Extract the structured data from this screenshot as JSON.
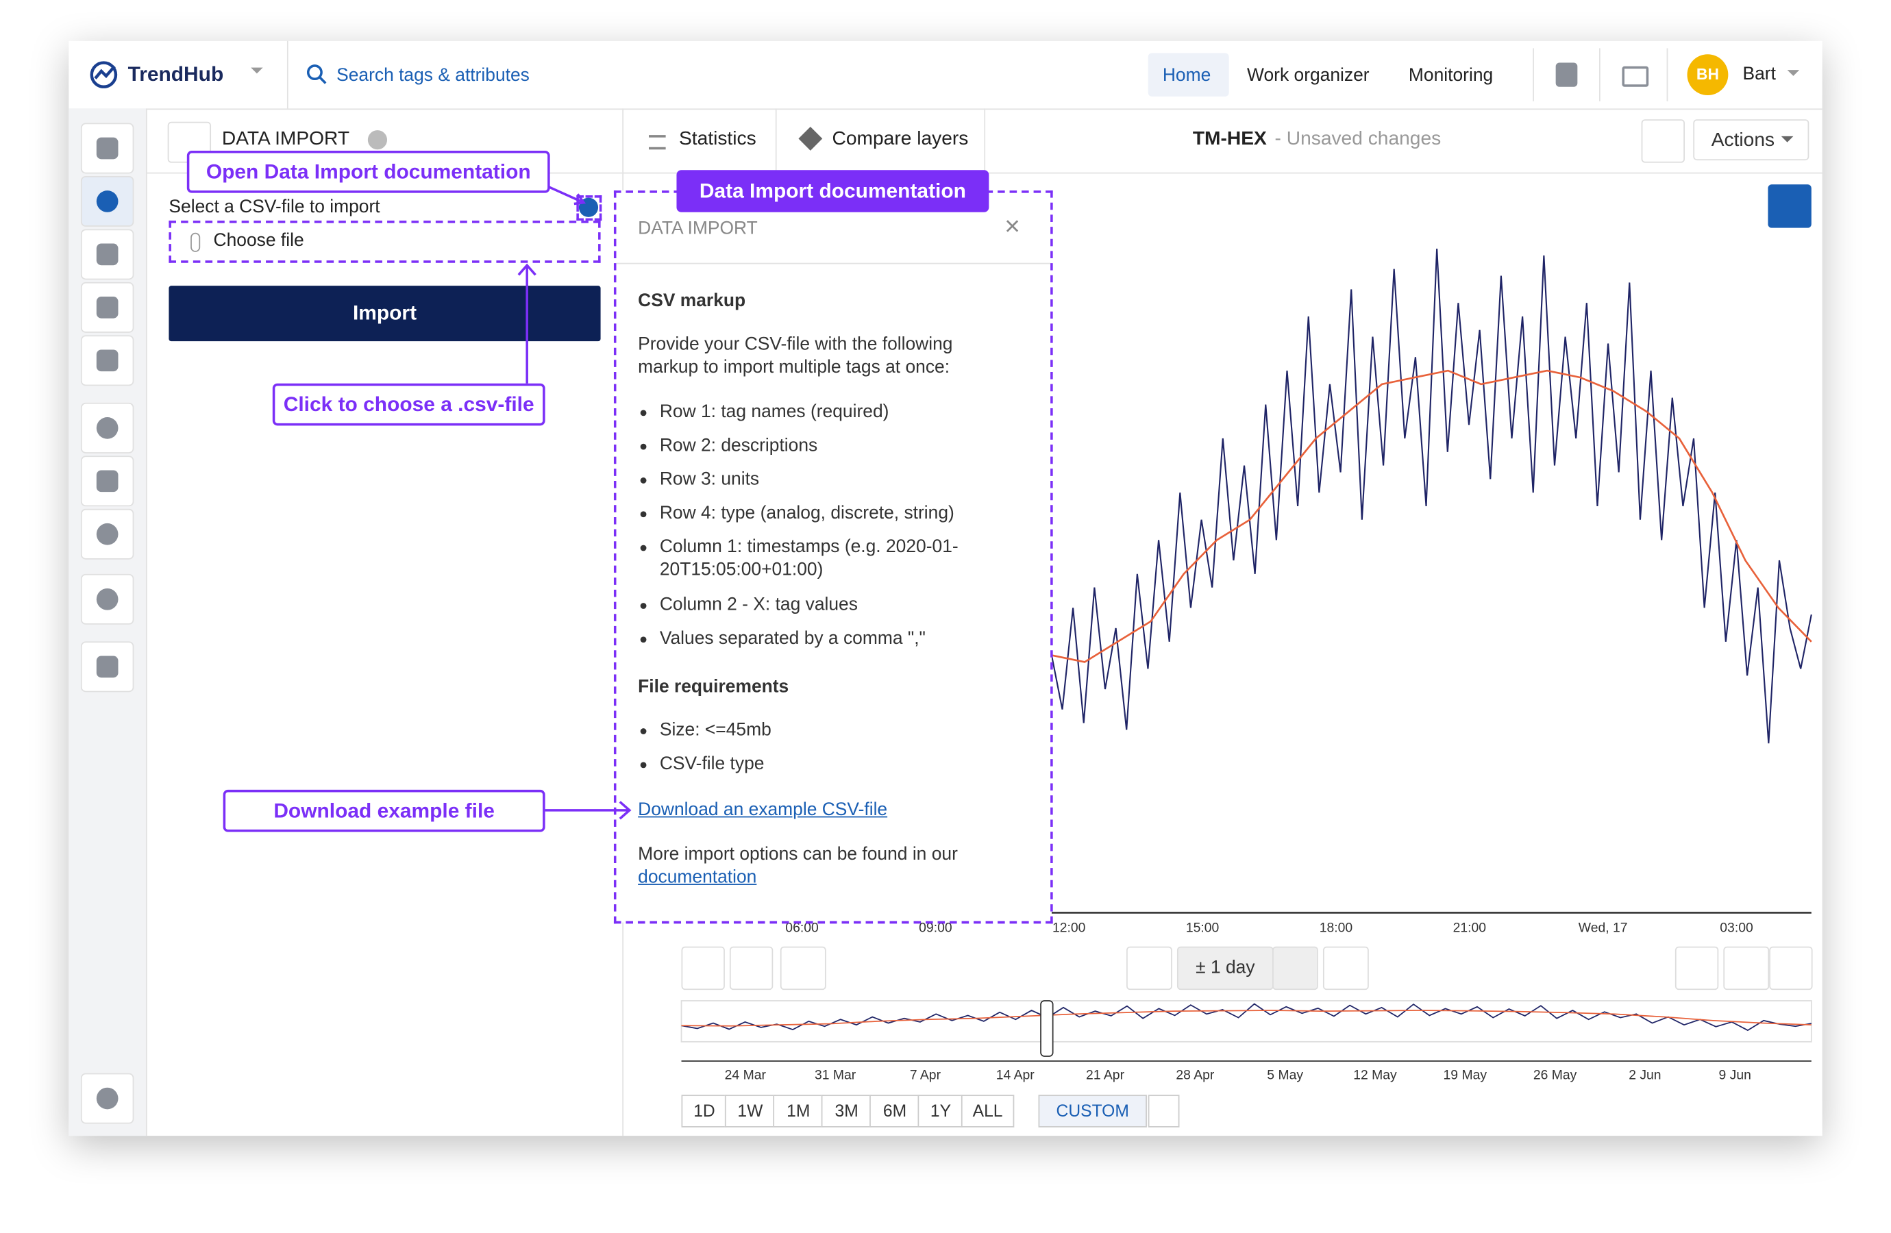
{
  "header": {
    "logo": "TrendHub",
    "search": "Search tags & attributes",
    "nav": [
      "Home",
      "Work organizer",
      "Monitoring"
    ],
    "avatar": "BH",
    "user": "Bart"
  },
  "panel": {
    "title": "DATA IMPORT",
    "select_label": "Select a CSV-file to import",
    "choose_file": "Choose file",
    "import_button": "Import"
  },
  "toolbar": {
    "tabs": [
      "Statistics",
      "Compare layers"
    ],
    "view_name": "TM-HEX",
    "status": "- Unsaved changes",
    "actions": "Actions"
  },
  "doc": {
    "title": "DATA IMPORT",
    "section1": "CSV markup",
    "intro": "Provide your CSV-file with the following markup to import multiple tags at once:",
    "rows": [
      "Row 1: tag names (required)",
      "Row 2: descriptions",
      "Row 3: units",
      "Row 4: type (analog, discrete, string)",
      "Column 1: timestamps (e.g. 2020-01-20T15:05:00+01:00)",
      "Column 2 - X: tag values",
      "Values separated by a comma \",\""
    ],
    "section2": "File requirements",
    "requirements": [
      "Size: <=45mb",
      "CSV-file type"
    ],
    "download_link": "Download an example CSV-file",
    "more": "More import options can be found in our",
    "more_link": "documentation"
  },
  "annotations": [
    "Open Data Import documentation",
    "Data Import documentation",
    "Click to choose a .csv-file",
    "Download example file"
  ],
  "chart": {
    "type": "line",
    "x_labels": [
      "06:00",
      "09:00",
      "12:00",
      "15:00",
      "18:00",
      "21:00",
      "Wed, 17",
      "03:00"
    ],
    "ylim": [
      0,
      100
    ],
    "series": [
      {
        "color": "#1f2466",
        "values": [
          38,
          30,
          45,
          28,
          48,
          33,
          42,
          27,
          50,
          36,
          55,
          40,
          62,
          45,
          58,
          48,
          70,
          52,
          66,
          50,
          75,
          55,
          80,
          60,
          88,
          62,
          78,
          65,
          92,
          58,
          85,
          66,
          95,
          70,
          82,
          60,
          98,
          68,
          90,
          72,
          86,
          64,
          94,
          70,
          88,
          62,
          97,
          66,
          85,
          70,
          90,
          60,
          84,
          65,
          93,
          58,
          80,
          55,
          76,
          60,
          70,
          45,
          62,
          40,
          55,
          35,
          48,
          25,
          52,
          42,
          36,
          44
        ]
      },
      {
        "color": "#e8613a",
        "values": [
          38,
          37,
          40,
          43,
          50,
          55,
          58,
          64,
          70,
          74,
          78,
          79,
          80,
          78,
          79,
          80,
          79,
          77,
          74,
          70,
          62,
          52,
          45,
          40
        ]
      }
    ],
    "range": "± 1 day",
    "navigator_dates": [
      "24 Mar",
      "31 Mar",
      "7 Apr",
      "14 Apr",
      "21 Apr",
      "28 Apr",
      "5 May",
      "12 May",
      "19 May",
      "26 May",
      "2 Jun",
      "9 Jun"
    ],
    "range_buttons": [
      "1D",
      "1W",
      "1M",
      "3M",
      "6M",
      "1Y",
      "ALL"
    ],
    "custom": "CUSTOM"
  }
}
